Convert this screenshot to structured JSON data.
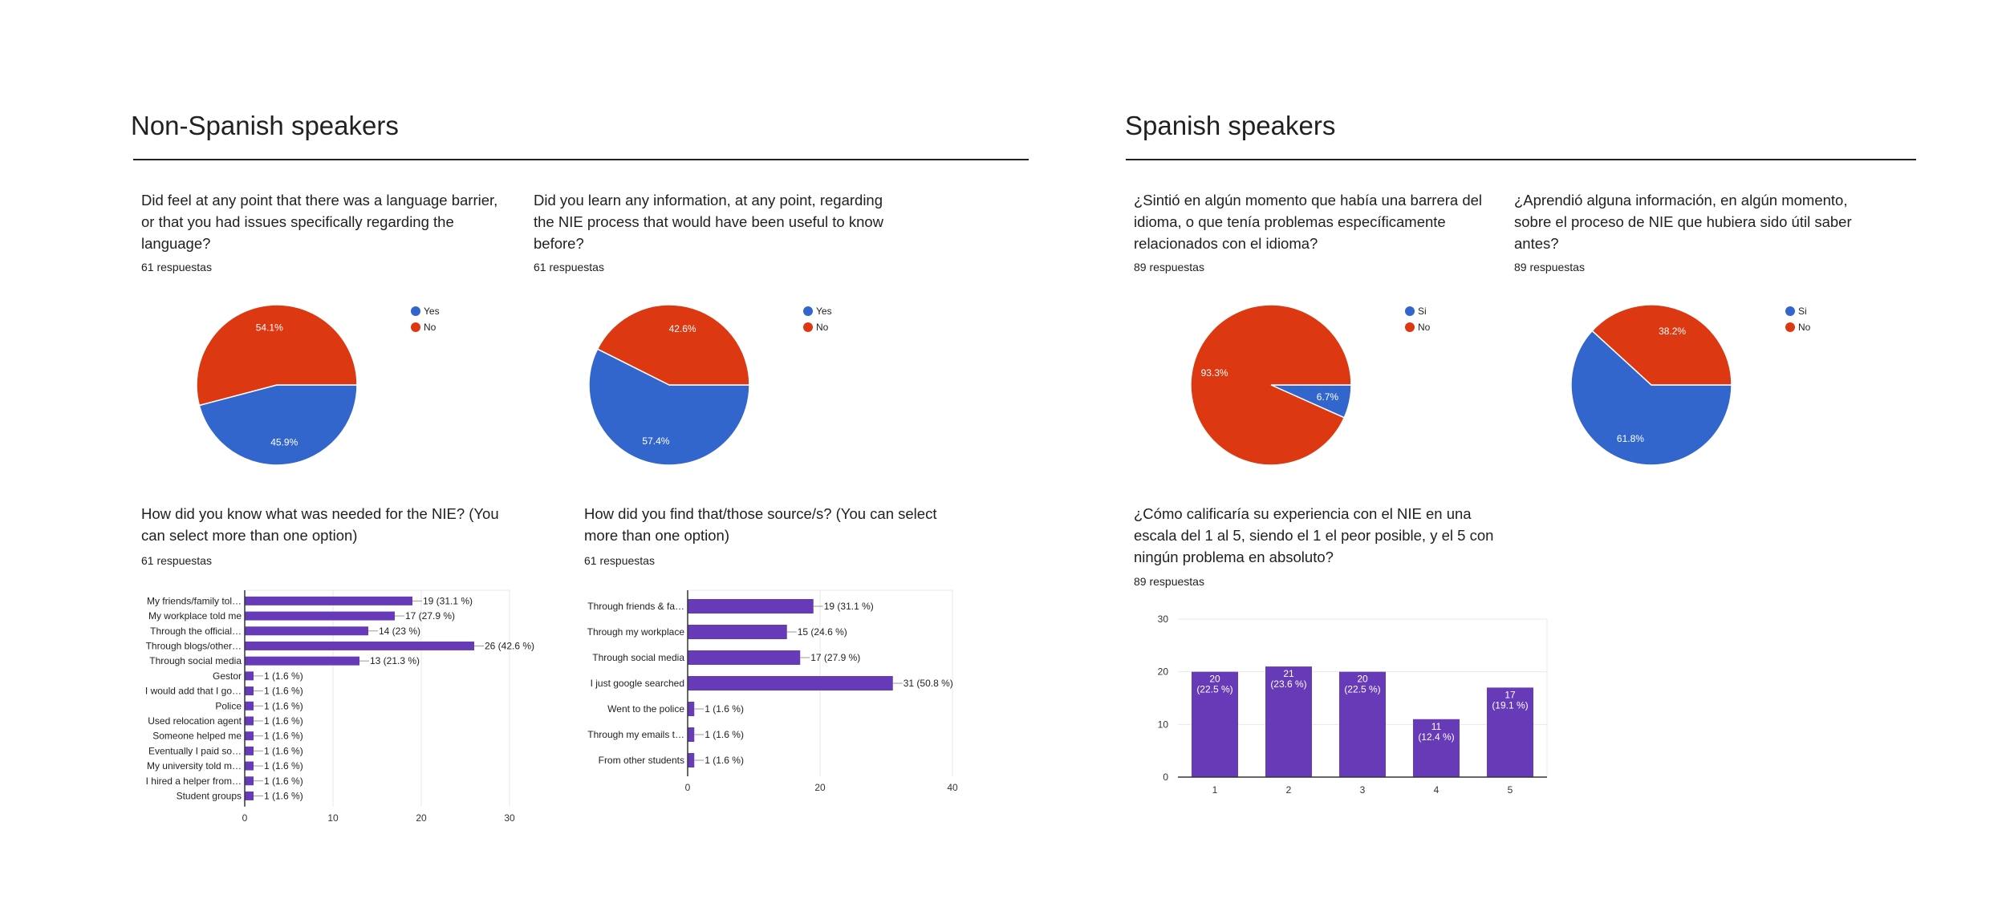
{
  "sections": {
    "left_title": "Non-Spanish speakers",
    "right_title": "Spanish speakers"
  },
  "colors": {
    "blue": "#3366cc",
    "red": "#dc3912",
    "purple": "#673ab7",
    "grid": "#e8e8e8",
    "axis": "#333333"
  },
  "questions": {
    "q1": {
      "text": "Did feel at any point that there was a language barrier, or that you had issues specifically regarding the language?",
      "responses": "61 respuestas"
    },
    "q2": {
      "text": "Did you learn any information, at any point, regarding the NIE process that would have been useful to know before?",
      "responses": "61 respuestas"
    },
    "q3": {
      "text": "How did you know what was needed for the NIE? (You can select more than one option)",
      "responses": "61 respuestas"
    },
    "q4": {
      "text": "How did you find that/those source/s? (You can select more than one option)",
      "responses": "61 respuestas"
    },
    "q5": {
      "text": "¿Sintió en algún momento que había una barrera del idioma, o que tenía problemas específicamente relacionados con el idioma?",
      "responses": "89 respuestas"
    },
    "q6": {
      "text": "¿Aprendió alguna información, en algún momento, sobre el proceso de NIE que hubiera sido útil saber antes?",
      "responses": "89 respuestas"
    },
    "q7": {
      "text": "¿Cómo calificaría su experiencia con el NIE en una escala del 1 al 5, siendo el 1 el peor posible, y el 5 con ningún problema en absoluto?",
      "responses": "89 respuestas"
    }
  },
  "chart_data": [
    {
      "id": "q1",
      "type": "pie",
      "title": "",
      "slices": [
        {
          "label": "Yes",
          "value": 45.9,
          "display": "45.9%",
          "color": "#3366cc"
        },
        {
          "label": "No",
          "value": 54.1,
          "display": "54.1%",
          "color": "#dc3912"
        }
      ],
      "legend": "right"
    },
    {
      "id": "q2",
      "type": "pie",
      "title": "",
      "slices": [
        {
          "label": "Yes",
          "value": 57.4,
          "display": "57.4%",
          "color": "#3366cc"
        },
        {
          "label": "No",
          "value": 42.6,
          "display": "42.6%",
          "color": "#dc3912"
        }
      ],
      "legend": "right"
    },
    {
      "id": "q5",
      "type": "pie",
      "title": "",
      "slices": [
        {
          "label": "Si",
          "value": 6.7,
          "display": "6.7%",
          "color": "#3366cc"
        },
        {
          "label": "No",
          "value": 93.3,
          "display": "93.3%",
          "color": "#dc3912"
        }
      ],
      "legend": "right"
    },
    {
      "id": "q6",
      "type": "pie",
      "title": "",
      "slices": [
        {
          "label": "Si",
          "value": 61.8,
          "display": "61.8%",
          "color": "#3366cc"
        },
        {
          "label": "No",
          "value": 38.2,
          "display": "38.2%",
          "color": "#dc3912"
        }
      ],
      "legend": "right"
    },
    {
      "id": "q3",
      "type": "bar",
      "orientation": "horizontal",
      "title": "",
      "categories": [
        "My friends/family tol…",
        "My workplace told me",
        "Through the official…",
        "Through blogs/other…",
        "Through social media",
        "Gestor",
        "I would add that I go…",
        "Police",
        "Used relocation agent",
        "Someone helped me",
        "Eventually I paid so…",
        "My university told m…",
        "I hired a helper from…",
        "Student groups"
      ],
      "values": [
        19,
        17,
        14,
        26,
        13,
        1,
        1,
        1,
        1,
        1,
        1,
        1,
        1,
        1
      ],
      "labels": [
        "19 (31.1 %)",
        "17 (27.9 %)",
        "14 (23 %)",
        "26 (42.6 %)",
        "13 (21.3 %)",
        "1 (1.6 %)",
        "1 (1.6 %)",
        "1 (1.6 %)",
        "1 (1.6 %)",
        "1 (1.6 %)",
        "1 (1.6 %)",
        "1 (1.6 %)",
        "1 (1.6 %)",
        "1 (1.6 %)"
      ],
      "xlim": [
        0,
        30
      ],
      "xticks": [
        0,
        10,
        20,
        30
      ],
      "grid": true
    },
    {
      "id": "q4",
      "type": "bar",
      "orientation": "horizontal",
      "title": "",
      "categories": [
        "Through friends & fa…",
        "Through my workplace",
        "Through social media",
        "I just google searched",
        "Went to the police",
        "Through my emails t…",
        "From other students"
      ],
      "values": [
        19,
        15,
        17,
        31,
        1,
        1,
        1
      ],
      "labels": [
        "19 (31.1 %)",
        "15 (24.6 %)",
        "17 (27.9 %)",
        "31 (50.8 %)",
        "1 (1.6 %)",
        "1 (1.6 %)",
        "1 (1.6 %)"
      ],
      "xlim": [
        0,
        40
      ],
      "xticks": [
        0,
        20,
        40
      ],
      "grid": true
    },
    {
      "id": "q7",
      "type": "bar",
      "orientation": "vertical",
      "title": "",
      "categories": [
        "1",
        "2",
        "3",
        "4",
        "5"
      ],
      "values": [
        20,
        21,
        20,
        11,
        17
      ],
      "labels": [
        [
          "20",
          "(22.5 %)"
        ],
        [
          "21",
          "(23.6 %)"
        ],
        [
          "20",
          "(22.5 %)"
        ],
        [
          "11",
          "(12.4 %)"
        ],
        [
          "17",
          "(19.1 %)"
        ]
      ],
      "ylim": [
        0,
        30
      ],
      "yticks": [
        0,
        10,
        20,
        30
      ],
      "grid": true
    }
  ]
}
